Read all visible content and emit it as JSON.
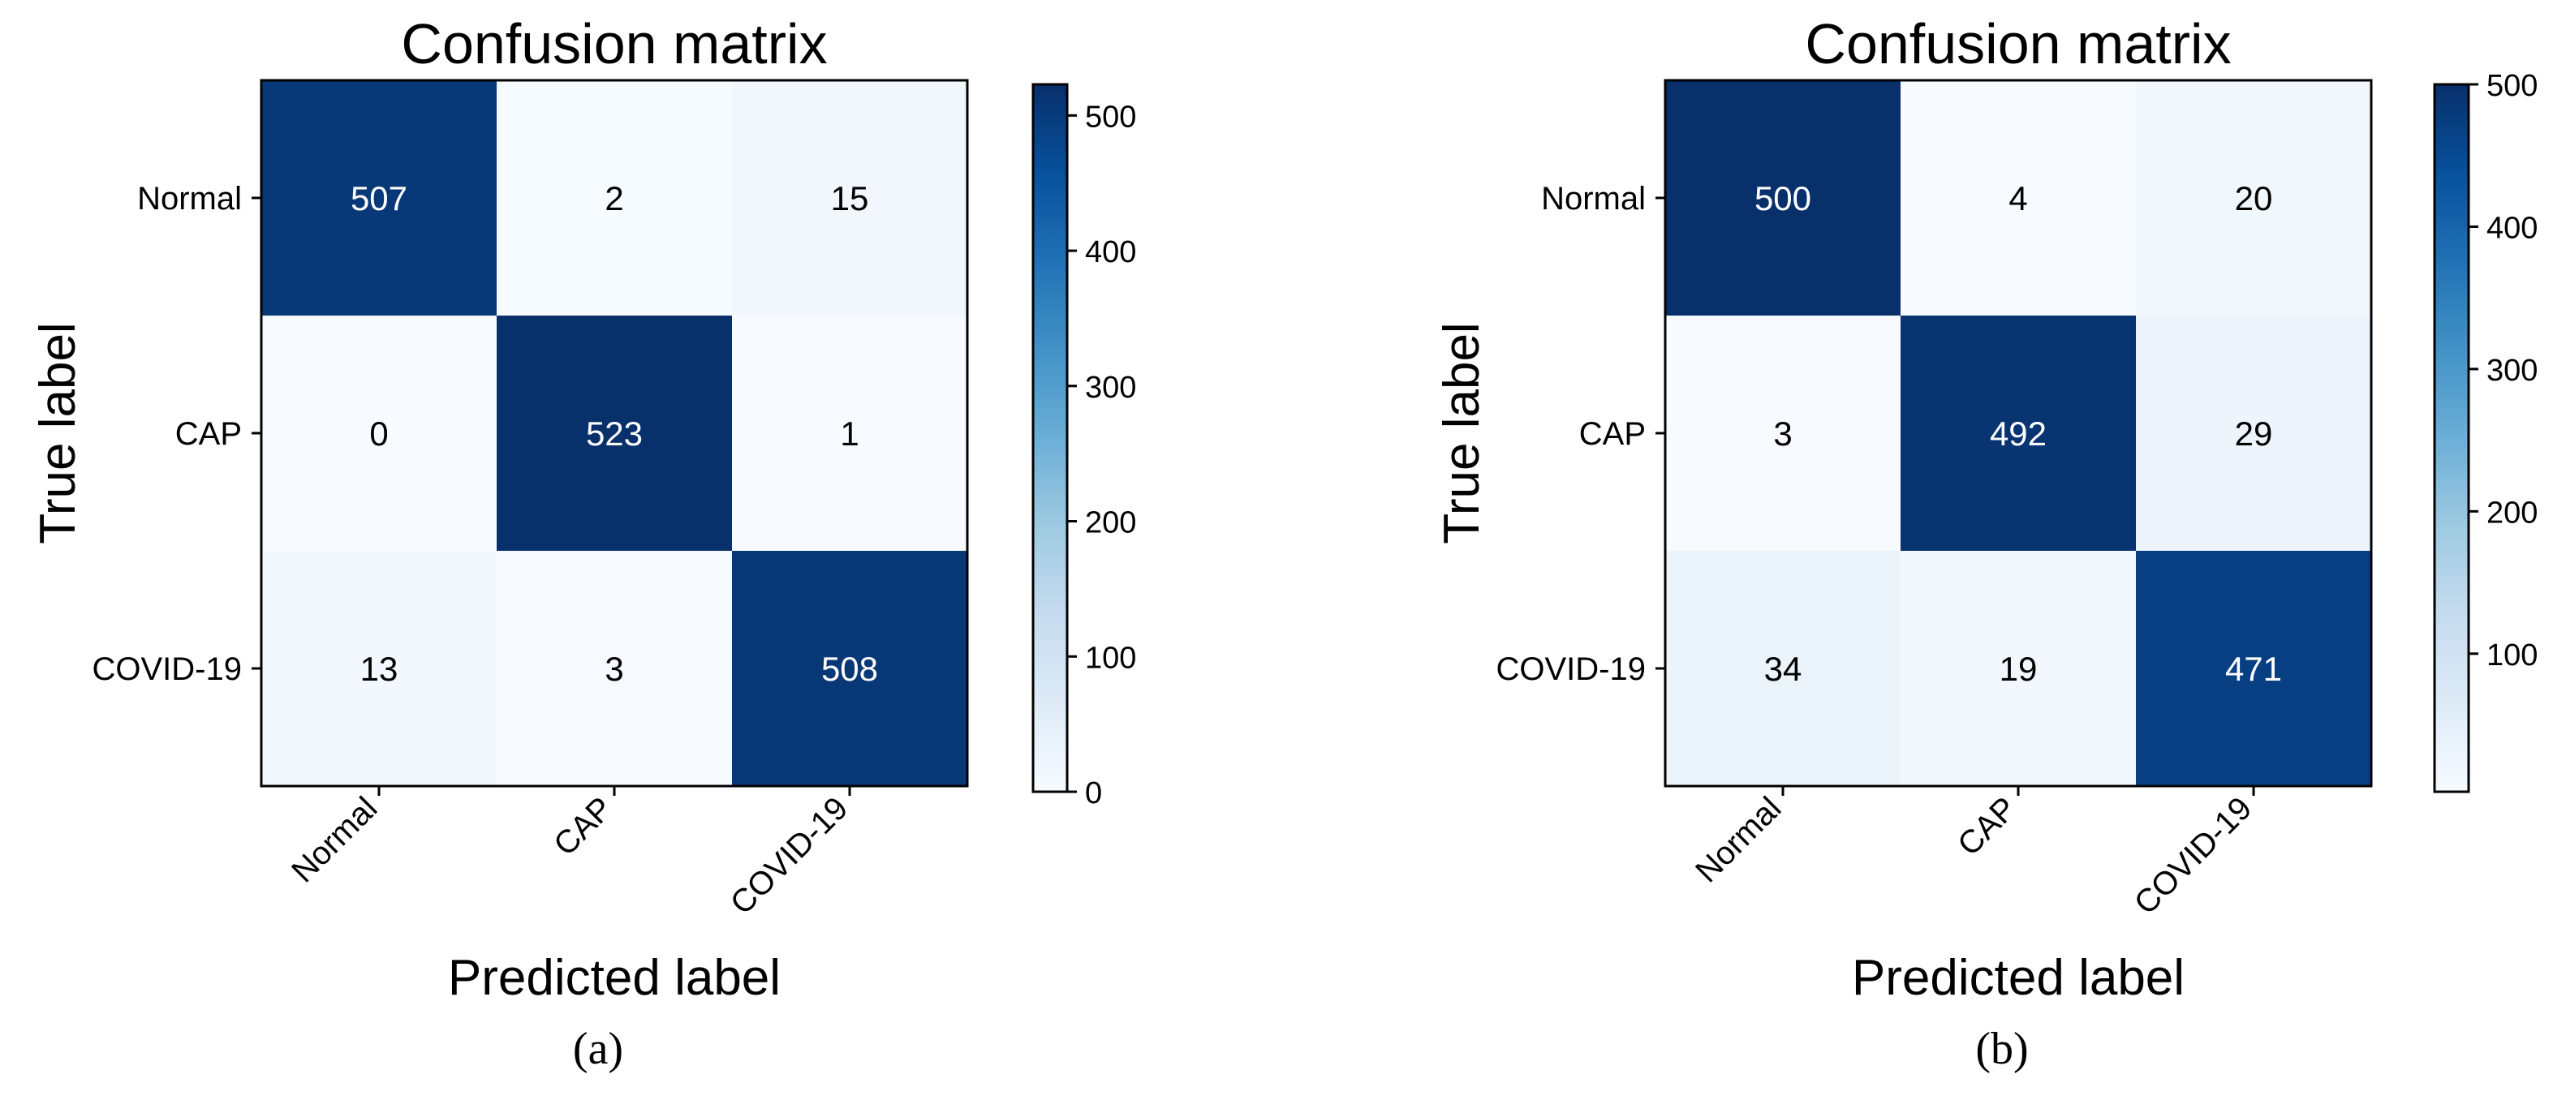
{
  "chart_data": [
    {
      "type": "heatmap",
      "title": "Confusion matrix",
      "xlabel": "Predicted label",
      "ylabel": "True label",
      "caption": "(a)",
      "categories": [
        "Normal",
        "CAP",
        "COVID-19"
      ],
      "matrix": [
        [
          507,
          2,
          15
        ],
        [
          0,
          523,
          1
        ],
        [
          13,
          3,
          508
        ]
      ],
      "colormap": "Blues",
      "vmin": 0,
      "vmax": 523,
      "colorbar_ticks": [
        0,
        100,
        200,
        300,
        400,
        500
      ]
    },
    {
      "type": "heatmap",
      "title": "Confusion matrix",
      "xlabel": "Predicted label",
      "ylabel": "True label",
      "caption": "(b)",
      "categories": [
        "Normal",
        "CAP",
        "COVID-19"
      ],
      "matrix": [
        [
          500,
          4,
          20
        ],
        [
          3,
          492,
          29
        ],
        [
          34,
          19,
          471
        ]
      ],
      "colormap": "Blues",
      "vmin": 3,
      "vmax": 500,
      "colorbar_ticks": [
        100,
        200,
        300,
        400,
        500
      ]
    }
  ]
}
